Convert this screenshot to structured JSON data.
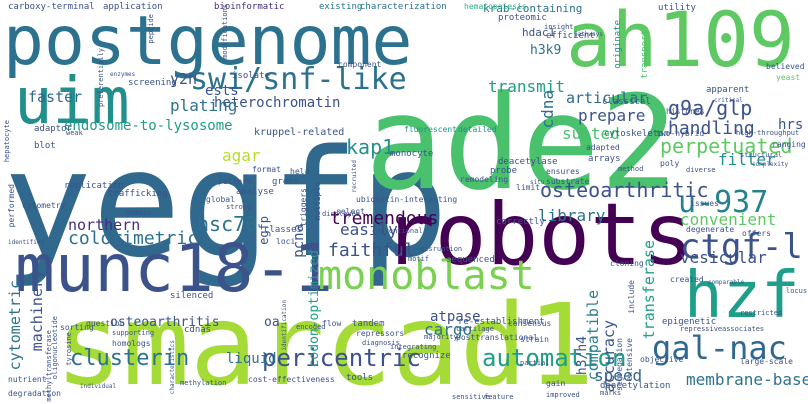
{
  "palette": {
    "lime": "#a5db36",
    "green": "#4ac16d",
    "teal": "#21908d",
    "blue": "#2c728e",
    "navy": "#3b528b",
    "purple": "#440154",
    "violet": "#472d7b",
    "sea": "#2db27d"
  },
  "words": [
    {
      "text": "yegfp",
      "color": "#31688e"
    },
    {
      "text": "smarcad1",
      "color": "#a5db36"
    },
    {
      "text": "ade2",
      "color": "#4ac16d"
    },
    {
      "text": "postgenome",
      "color": "#2c728e"
    },
    {
      "text": "robots",
      "color": "#440154"
    },
    {
      "text": "ah109",
      "color": "#5ec962"
    },
    {
      "text": "munc18-1",
      "color": "#3b528b"
    },
    {
      "text": "hzf",
      "color": "#1f9e89"
    },
    {
      "text": "uim",
      "color": "#21908d"
    },
    {
      "text": "monoblast",
      "color": "#7ad151"
    },
    {
      "text": "swi/snf-like",
      "color": "#2c728e"
    },
    {
      "text": "ctgf-l",
      "color": "#3b528b"
    },
    {
      "text": "gal-nac",
      "color": "#31688e"
    },
    {
      "text": "u-937",
      "color": "#26828e"
    },
    {
      "text": "perpetuated",
      "color": "#5ec962"
    },
    {
      "text": "clusterin",
      "color": "#2c728e"
    },
    {
      "text": "pericentric",
      "color": "#3b528b"
    },
    {
      "text": "automation",
      "color": "#1f9e89"
    },
    {
      "text": "osteoarthritic",
      "color": "#3b528b"
    },
    {
      "text": "tremendous",
      "color": "#440154"
    },
    {
      "text": "colorimetric",
      "color": "#2c728e"
    },
    {
      "text": "faithful",
      "color": "#3b528b"
    },
    {
      "text": "hsc70",
      "color": "#2c728e"
    },
    {
      "text": "kap1",
      "color": "#21908d"
    },
    {
      "text": "g9a/glp",
      "color": "#3b528b"
    },
    {
      "text": "handling",
      "color": "#3b528b"
    },
    {
      "text": "northern",
      "color": "#472d7b"
    },
    {
      "text": "easily",
      "color": "#3b528b"
    },
    {
      "text": "library",
      "color": "#2c728e"
    },
    {
      "text": "convenient",
      "color": "#5ec962"
    },
    {
      "text": "vesicular",
      "color": "#3b528b"
    },
    {
      "text": "membrane-based",
      "color": "#2c728e"
    },
    {
      "text": "speed",
      "color": "#31688e"
    },
    {
      "text": "cargo",
      "color": "#2c728e"
    },
    {
      "text": "atpase",
      "color": "#3b528b"
    },
    {
      "text": "filter",
      "color": "#21908d"
    },
    {
      "text": "suited",
      "color": "#4ac16d"
    },
    {
      "text": "prepare",
      "color": "#3b528b"
    },
    {
      "text": "articular",
      "color": "#31688e"
    },
    {
      "text": "transmit",
      "color": "#1f9e89"
    },
    {
      "text": "heterochromatin",
      "color": "#3b528b"
    },
    {
      "text": "plating",
      "color": "#2c728e"
    },
    {
      "text": "endosome-to-lysosome",
      "color": "#1f9e89"
    },
    {
      "text": "faster",
      "color": "#31688e"
    },
    {
      "text": "y2h",
      "color": "#3b528b"
    },
    {
      "text": "ests",
      "color": "#3b528b"
    },
    {
      "text": "h3k9",
      "color": "#2c728e"
    },
    {
      "text": "hdac1",
      "color": "#3b528b"
    },
    {
      "text": "krab-containing",
      "color": "#2c728e"
    },
    {
      "text": "osteoarthritis",
      "color": "#3b528b"
    },
    {
      "text": "machinery",
      "color": "#3b528b"
    },
    {
      "text": "cytometric",
      "color": "#2c728e"
    },
    {
      "text": "compatible",
      "color": "#26828e"
    },
    {
      "text": "accuracy",
      "color": "#3b528b"
    },
    {
      "text": "transferase",
      "color": "#1f9e89"
    },
    {
      "text": "agar",
      "color": "#b5de2b"
    },
    {
      "text": "pcna",
      "color": "#3b528b"
    },
    {
      "text": "liquid",
      "color": "#2c728e"
    },
    {
      "text": "codon-optimized",
      "color": "#1f9e89"
    },
    {
      "text": "cdna",
      "color": "#2c728e"
    },
    {
      "text": "hrs",
      "color": "#3b528b"
    },
    {
      "text": "h3/h4",
      "color": "#3b528b"
    },
    {
      "text": "kruppel-related",
      "color": "#3b528b"
    },
    {
      "text": "carboxy-terminal",
      "color": "#3b528b"
    },
    {
      "text": "application",
      "color": "#3b528b"
    },
    {
      "text": "bioinformatic",
      "color": "#472d7b"
    },
    {
      "text": "existing",
      "color": "#2c728e"
    },
    {
      "text": "characterization",
      "color": "#2c728e"
    },
    {
      "text": "hematopoiesis",
      "color": "#2db27d"
    },
    {
      "text": "proteomic",
      "color": "#3b528b"
    },
    {
      "text": "insight",
      "color": "#3b528b"
    },
    {
      "text": "efficient",
      "color": "#3b528b"
    },
    {
      "text": "utility",
      "color": "#3b528b"
    },
    {
      "text": "originate",
      "color": "#21908d"
    },
    {
      "text": "transport",
      "color": "#4ac16d"
    },
    {
      "text": "believed",
      "color": "#3b528b"
    },
    {
      "text": "yeast",
      "color": "#5ec962"
    },
    {
      "text": "screening",
      "color": "#3b528b"
    },
    {
      "text": "isolate",
      "color": "#3b528b"
    },
    {
      "text": "component",
      "color": "#3b528b"
    },
    {
      "text": "classical",
      "color": "#3b528b"
    },
    {
      "text": "apparent",
      "color": "#3b528b"
    },
    {
      "text": "histones",
      "color": "#3b528b"
    },
    {
      "text": "ranging",
      "color": "#3b528b"
    },
    {
      "text": "cytoskeleton",
      "color": "#3b528b"
    },
    {
      "text": "fluorescent",
      "color": "#21908d"
    },
    {
      "text": "detailed",
      "color": "#21908d"
    },
    {
      "text": "monocyte",
      "color": "#3b528b"
    },
    {
      "text": "deacetylase",
      "color": "#3b528b"
    },
    {
      "text": "adapted",
      "color": "#3b528b"
    },
    {
      "text": "arrays",
      "color": "#3b528b"
    },
    {
      "text": "method",
      "color": "#3b528b"
    },
    {
      "text": "two-hybrid",
      "color": "#3b528b"
    },
    {
      "text": "high-throughput",
      "color": "#3b528b"
    },
    {
      "text": "poly",
      "color": "#3b528b"
    },
    {
      "text": "structural",
      "color": "#3b528b"
    },
    {
      "text": "diverse",
      "color": "#3b528b"
    },
    {
      "text": "probe",
      "color": "#3b528b"
    },
    {
      "text": "ensures",
      "color": "#3b528b"
    },
    {
      "text": "substrate",
      "color": "#3b528b"
    },
    {
      "text": "remodeling",
      "color": "#3b528b"
    },
    {
      "text": "correctly",
      "color": "#3b528b"
    },
    {
      "text": "ubiquitin-interacting",
      "color": "#3b528b"
    },
    {
      "text": "select",
      "color": "#3b528b"
    },
    {
      "text": "displayed",
      "color": "#3b528b"
    },
    {
      "text": "multiple",
      "color": "#3b528b"
    },
    {
      "text": "triggers",
      "color": "#3b528b"
    },
    {
      "text": "green",
      "color": "#3b528b"
    },
    {
      "text": "hela",
      "color": "#3b528b"
    },
    {
      "text": "format",
      "color": "#3b528b"
    },
    {
      "text": "pattern",
      "color": "#3b528b"
    },
    {
      "text": "analyse",
      "color": "#3b528b"
    },
    {
      "text": "global",
      "color": "#3b528b"
    },
    {
      "text": "strong",
      "color": "#3b528b"
    },
    {
      "text": "trafficking",
      "color": "#3b528b"
    },
    {
      "text": "replication",
      "color": "#3b528b"
    },
    {
      "text": "blot",
      "color": "#3b528b"
    },
    {
      "text": "adaptor",
      "color": "#3b528b"
    },
    {
      "text": "weak",
      "color": "#3b528b"
    },
    {
      "text": "performed",
      "color": "#3b528b"
    },
    {
      "text": "cytometry",
      "color": "#3b528b"
    },
    {
      "text": "domain",
      "color": "#3b528b"
    },
    {
      "text": "identified",
      "color": "#3b528b"
    },
    {
      "text": "classes",
      "color": "#3b528b"
    },
    {
      "text": "loci",
      "color": "#3b528b"
    },
    {
      "text": "conventional",
      "color": "#3b528b"
    },
    {
      "text": "motif",
      "color": "#3b528b"
    },
    {
      "text": "sequenced",
      "color": "#3b528b"
    },
    {
      "text": "disruption",
      "color": "#3b528b"
    },
    {
      "text": "cloning",
      "color": "#3b528b"
    },
    {
      "text": "created",
      "color": "#3b528b"
    },
    {
      "text": "offers",
      "color": "#3b528b"
    },
    {
      "text": "degenerate",
      "color": "#3b528b"
    },
    {
      "text": "issues",
      "color": "#3b528b"
    },
    {
      "text": "include",
      "color": "#3b528b"
    },
    {
      "text": "silenced",
      "color": "#3b528b"
    },
    {
      "text": "oa",
      "color": "#3b528b"
    },
    {
      "text": "encoded",
      "color": "#3b528b"
    },
    {
      "text": "flow",
      "color": "#3b528b"
    },
    {
      "text": "tandem",
      "color": "#3b528b"
    },
    {
      "text": "re-establishment",
      "color": "#3b528b"
    },
    {
      "text": "consensus",
      "color": "#3b528b"
    },
    {
      "text": "question",
      "color": "#3b528b"
    },
    {
      "text": "sorting",
      "color": "#3b528b"
    },
    {
      "text": "supporting",
      "color": "#3b528b"
    },
    {
      "text": "cdnas",
      "color": "#3b528b"
    },
    {
      "text": "homologs",
      "color": "#3b528b"
    },
    {
      "text": "tyrosine",
      "color": "#3b528b"
    },
    {
      "text": "oligonucleotide",
      "color": "#3b528b"
    },
    {
      "text": "posttranslational",
      "color": "#3b528b"
    },
    {
      "text": "majority",
      "color": "#3b528b"
    },
    {
      "text": "cartilage",
      "color": "#3b528b"
    },
    {
      "text": "integrating",
      "color": "#3b528b"
    },
    {
      "text": "repressors",
      "color": "#3b528b"
    },
    {
      "text": "diagnosis",
      "color": "#3b528b"
    },
    {
      "text": "recognize",
      "color": "#3b528b"
    },
    {
      "text": "strain",
      "color": "#3b528b"
    },
    {
      "text": "partial",
      "color": "#3b528b"
    },
    {
      "text": "gain",
      "color": "#3b528b"
    },
    {
      "text": "improved",
      "color": "#3b528b"
    },
    {
      "text": "segregation",
      "color": "#3b528b"
    },
    {
      "text": "extensive",
      "color": "#3b528b"
    },
    {
      "text": "marks",
      "color": "#3b528b"
    },
    {
      "text": "epigenetic",
      "color": "#3b528b"
    },
    {
      "text": "repressive",
      "color": "#3b528b"
    },
    {
      "text": "associates",
      "color": "#3b528b"
    },
    {
      "text": "large-scale",
      "color": "#3b528b"
    },
    {
      "text": "restricted",
      "color": "#3b528b"
    },
    {
      "text": "deacetylation",
      "color": "#3b528b"
    },
    {
      "text": "objective",
      "color": "#3b528b"
    },
    {
      "text": "degradation",
      "color": "#3b528b"
    },
    {
      "text": "nutrient",
      "color": "#3b528b"
    },
    {
      "text": "methyltransferase",
      "color": "#3b528b"
    },
    {
      "text": "cost-effectiveness",
      "color": "#3b528b"
    },
    {
      "text": "tools",
      "color": "#3b528b"
    },
    {
      "text": "sensitive",
      "color": "#3b528b"
    },
    {
      "text": "feature",
      "color": "#3b528b"
    },
    {
      "text": "hepatocyte",
      "color": "#3b528b"
    },
    {
      "text": "comparable",
      "color": "#3b528b"
    },
    {
      "text": "locus",
      "color": "#3b528b"
    },
    {
      "text": "limit",
      "color": "#3b528b"
    },
    {
      "text": "modifications",
      "color": "#3b528b"
    },
    {
      "text": "peptide",
      "color": "#3b528b"
    },
    {
      "text": "enzymes",
      "color": "#3b528b"
    },
    {
      "text": "preferentially",
      "color": "#3b528b"
    },
    {
      "text": "methylation",
      "color": "#3b528b"
    },
    {
      "text": "individual",
      "color": "#3b528b"
    },
    {
      "text": "characteristics",
      "color": "#3b528b"
    },
    {
      "text": "recruited",
      "color": "#3b528b"
    },
    {
      "text": "identification",
      "color": "#3b528b"
    },
    {
      "text": "situ",
      "color": "#3b528b"
    },
    {
      "text": "critical",
      "color": "#3b528b"
    },
    {
      "text": "pathways",
      "color": "#3b528b"
    },
    {
      "text": "complexity",
      "color": "#3b528b"
    },
    {
      "text": "egfp",
      "color": "#3b528b"
    }
  ]
}
